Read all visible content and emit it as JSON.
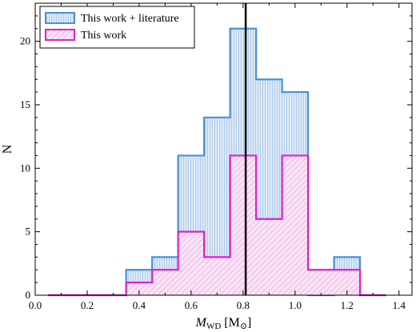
{
  "chart_data": {
    "type": "bar",
    "subtype": "step-histogram",
    "xlabel_main": "M",
    "xlabel_sub": "WD",
    "xlabel_unit": "[M",
    "xlabel_unit_sub": "⊙",
    "xlabel_unit_close": "]",
    "ylabel": "N",
    "xlim": [
      0.0,
      1.45
    ],
    "ylim": [
      0,
      23
    ],
    "xticks": [
      0.0,
      0.2,
      0.4,
      0.6,
      0.8,
      1.0,
      1.2,
      1.4
    ],
    "xtick_labels": [
      "0.0",
      "0.2",
      "0.4",
      "0.6",
      "0.8",
      "1.0",
      "1.2",
      "1.4"
    ],
    "yticks": [
      0,
      5,
      10,
      15,
      20
    ],
    "ytick_labels": [
      "0",
      "5",
      "10",
      "15",
      "20"
    ],
    "bin_edges": [
      0.05,
      0.15,
      0.25,
      0.35,
      0.45,
      0.55,
      0.65,
      0.75,
      0.85,
      0.95,
      1.05,
      1.15,
      1.25,
      1.35
    ],
    "series": [
      {
        "name": "This work + literature",
        "color": "#4a90d9",
        "fill": "#dce9f7",
        "hatch": "vertical",
        "values": [
          0,
          0,
          0,
          2,
          3,
          11,
          14,
          21,
          17,
          16,
          0,
          3,
          0
        ]
      },
      {
        "name": "This work",
        "color": "#e020c8",
        "fill": "#f9e3f5",
        "hatch": "diagonal",
        "values": [
          0,
          0,
          0,
          1,
          2,
          5,
          3,
          11,
          6,
          11,
          2,
          2,
          0
        ]
      }
    ],
    "vline": 0.81,
    "legend_position": "top-left",
    "grid": false
  }
}
